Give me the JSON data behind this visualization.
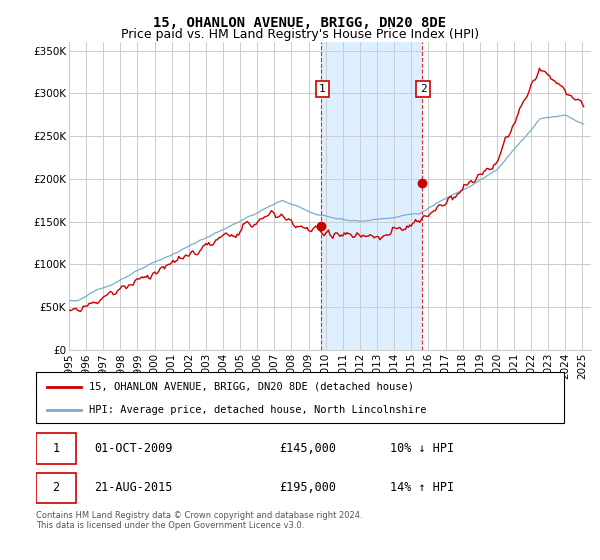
{
  "title": "15, OHANLON AVENUE, BRIGG, DN20 8DE",
  "subtitle": "Price paid vs. HM Land Registry's House Price Index (HPI)",
  "ylim": [
    0,
    360000
  ],
  "yticks": [
    0,
    50000,
    100000,
    150000,
    200000,
    250000,
    300000,
    350000
  ],
  "ytick_labels": [
    "£0",
    "£50K",
    "£100K",
    "£150K",
    "£200K",
    "£250K",
    "£300K",
    "£350K"
  ],
  "xlim_start": 1995.0,
  "xlim_end": 2025.5,
  "marker1_x": 2009.75,
  "marker1_y": 145000,
  "marker2_x": 2015.64,
  "marker2_y": 195000,
  "shade_start": 2009.75,
  "shade_end": 2015.64,
  "legend_line1": "15, OHANLON AVENUE, BRIGG, DN20 8DE (detached house)",
  "legend_line2": "HPI: Average price, detached house, North Lincolnshire",
  "table_row1_num": "1",
  "table_row1_date": "01-OCT-2009",
  "table_row1_price": "£145,000",
  "table_row1_hpi": "10% ↓ HPI",
  "table_row2_num": "2",
  "table_row2_date": "21-AUG-2015",
  "table_row2_price": "£195,000",
  "table_row2_hpi": "14% ↑ HPI",
  "footer": "Contains HM Land Registry data © Crown copyright and database right 2024.\nThis data is licensed under the Open Government Licence v3.0.",
  "red_color": "#cc0000",
  "blue_color": "#7aadcf",
  "shade_color": "#ddeeff",
  "grid_color": "#cccccc",
  "title_fontsize": 10,
  "subtitle_fontsize": 9,
  "axis_fontsize": 7.5
}
